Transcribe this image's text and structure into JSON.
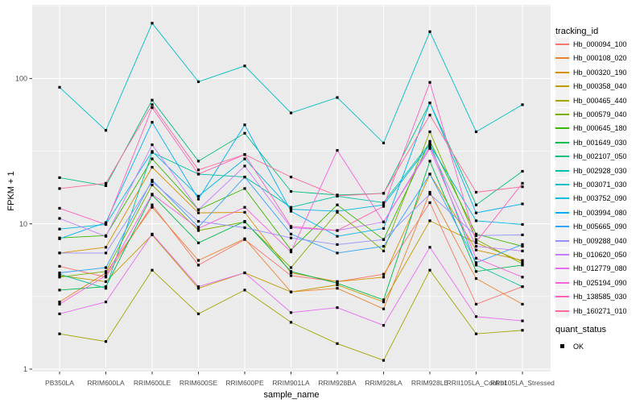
{
  "figure": {
    "panel_background": "#EBEBEB",
    "grid_color": "#FFFFFF",
    "point_color": "#000000",
    "axis_text_color": "#4D4D4D",
    "tick_color": "#333333"
  },
  "legend": {
    "tracking_title": "tracking_id",
    "quant_title": "quant_status",
    "quant_items": [
      {
        "label": "OK",
        "shape": "filled-square",
        "color": "#000000"
      }
    ]
  },
  "chart_data": {
    "type": "line",
    "title": "",
    "xlabel": "sample_name",
    "ylabel": "FPKM + 1",
    "y_axis": {
      "scale": "log10",
      "ticks": [
        1,
        10,
        100
      ],
      "tick_labels": [
        "1",
        "10",
        "100"
      ],
      "range_approx": [
        0.9,
        320
      ]
    },
    "grid": true,
    "legend_position": "right",
    "point_marker": "black filled square (quant_status OK) on every data point",
    "categories": [
      "PB350LA",
      "RRIM600LA",
      "RRIM600LE",
      "RRIM600SE",
      "RRIM600PE",
      "RRIM901LA",
      "RRIM928BA",
      "RRIM928LA",
      "RRIM928LE",
      "RRII105LA_Control",
      "RRII105LA_Stressed"
    ],
    "series": [
      {
        "name": "Hb_000094_100",
        "color": "#F8766D",
        "values": [
          5.1,
          4.3,
          13.5,
          5.2,
          7.8,
          4.4,
          4.0,
          4.5,
          14,
          2.8,
          3.7
        ]
      },
      {
        "name": "Hb_000108_020",
        "color": "#EA8331",
        "values": [
          2.9,
          4.6,
          13,
          5.6,
          7.9,
          3.4,
          3.6,
          2.6,
          16.5,
          4.2,
          2.8
        ]
      },
      {
        "name": "Hb_000320_190",
        "color": "#D89000",
        "values": [
          6.3,
          6.9,
          24.5,
          11.9,
          12,
          4.6,
          4.0,
          4.3,
          22,
          6.6,
          5.6
        ]
      },
      {
        "name": "Hb_000358_040",
        "color": "#C09B00",
        "values": [
          4.4,
          4.0,
          8.4,
          3.6,
          4.6,
          3.4,
          3.8,
          2.9,
          10.5,
          7.4,
          5.5
        ]
      },
      {
        "name": "Hb_000465_440",
        "color": "#A3A500",
        "values": [
          1.75,
          1.55,
          4.8,
          2.4,
          3.5,
          2.1,
          1.5,
          1.15,
          4.8,
          1.75,
          1.85
        ]
      },
      {
        "name": "Hb_000579_040",
        "color": "#7CAE00",
        "values": [
          4.3,
          4.7,
          18.5,
          9.0,
          10.3,
          5.0,
          12,
          6.5,
          43,
          7.8,
          5.3
        ]
      },
      {
        "name": "Hb_000645_180",
        "color": "#39B600",
        "values": [
          8.0,
          8.3,
          28,
          12.5,
          17.5,
          6.6,
          13.5,
          7.8,
          37,
          8.5,
          7.0
        ]
      },
      {
        "name": "Hb_001649_030",
        "color": "#00BB4E",
        "values": [
          3.5,
          3.7,
          15.8,
          7.4,
          10.4,
          4.7,
          3.9,
          3.0,
          27,
          4.7,
          5.2
        ]
      },
      {
        "name": "Hb_002107_050",
        "color": "#00BF7D",
        "values": [
          20.8,
          18.3,
          71,
          27,
          42,
          16.7,
          15.8,
          16.2,
          68,
          13.5,
          23
        ]
      },
      {
        "name": "Hb_002928_030",
        "color": "#00C1A3",
        "values": [
          4.5,
          3.6,
          31,
          22,
          21,
          13,
          15.5,
          14,
          36,
          5.2,
          3.7
        ]
      },
      {
        "name": "Hb_003071_030",
        "color": "#00BFC4",
        "values": [
          87,
          44,
          240,
          95,
          122,
          58,
          74,
          36,
          210,
          43,
          66
        ]
      },
      {
        "name": "Hb_003752_090",
        "color": "#00BAE0",
        "values": [
          9.2,
          9.9,
          31.5,
          15.5,
          28,
          12.6,
          12.2,
          13.5,
          35,
          10.5,
          9.9
        ]
      },
      {
        "name": "Hb_003994_080",
        "color": "#00B0F6",
        "values": [
          7.9,
          10.2,
          50,
          14.8,
          48,
          12.2,
          8.2,
          9.3,
          68,
          11.9,
          13.7
        ]
      },
      {
        "name": "Hb_005665_090",
        "color": "#35A2FF",
        "values": [
          4.6,
          5.0,
          20,
          9.5,
          21,
          8.5,
          6.3,
          7.0,
          22,
          5.4,
          7.2
        ]
      },
      {
        "name": "Hb_009288_040",
        "color": "#9590FF",
        "values": [
          6.3,
          6.3,
          19.5,
          10.4,
          9.4,
          8.0,
          7.2,
          7.8,
          16,
          8.3,
          8.4
        ]
      },
      {
        "name": "Hb_010620_050",
        "color": "#C77CFF",
        "values": [
          10.9,
          8.2,
          35,
          12.5,
          25,
          9.4,
          9.0,
          10.3,
          34,
          7.0,
          6.5
        ]
      },
      {
        "name": "Hb_012779_080",
        "color": "#E76BF3",
        "values": [
          2.4,
          2.9,
          8.5,
          3.7,
          4.6,
          2.45,
          2.65,
          2.0,
          6.9,
          2.3,
          2.15
        ]
      },
      {
        "name": "Hb_025194_090",
        "color": "#FA62DB",
        "values": [
          2.8,
          4.4,
          16,
          9.3,
          13,
          6.4,
          32,
          10.3,
          33,
          5.8,
          4.3
        ]
      },
      {
        "name": "Hb_138585_030",
        "color": "#FF62BC",
        "values": [
          12.8,
          9.9,
          63,
          22,
          30,
          9.6,
          9.0,
          13.2,
          94,
          7.5,
          19
        ]
      },
      {
        "name": "Hb_160271_010",
        "color": "#FF6A98",
        "values": [
          17.5,
          19,
          66,
          23.5,
          30,
          21,
          15.6,
          16.2,
          56,
          16.5,
          18
        ]
      }
    ]
  }
}
